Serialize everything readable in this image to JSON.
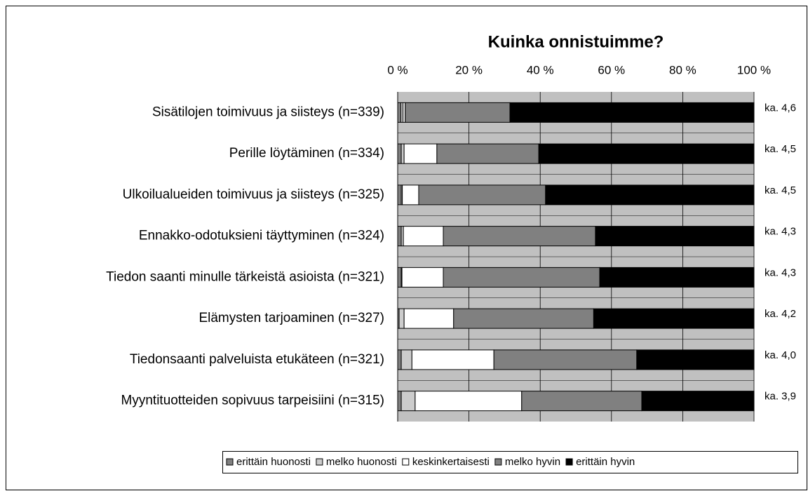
{
  "chart_data": {
    "type": "stacked_barh",
    "title": "Kuinka onnistuimme?",
    "categories": [
      "Sisätilojen toimivuus ja siisteys (n=339)",
      "Perille löytäminen (n=334)",
      "Ulkoilualueiden toimivuus ja siisteys (n=325)",
      "Ennakko-odotuksieni täyttyminen (n=324)",
      "Tiedon saanti minulle tärkeistä asioista (n=321)",
      "Elämysten tarjoaminen (n=327)",
      "Tiedonsaanti palveluista etukäteen (n=321)",
      "Myyntituotteiden sopivuus tarpeisiini (n=315)"
    ],
    "series": [
      {
        "name": "erittäin huonosti",
        "color": "#808080",
        "values": [
          0.9,
          1,
          1,
          1,
          1,
          0.4,
          1,
          1
        ]
      },
      {
        "name": "melko huonosti",
        "color": "#cccccc",
        "values": [
          0.6,
          0.8,
          0.3,
          0.6,
          0.2,
          1.4,
          3,
          3.9
        ]
      },
      {
        "name": "keskinkertaisesti",
        "color": "#ffffff",
        "values": [
          0.6,
          9.2,
          4.6,
          11.2,
          11.6,
          13.9,
          23,
          29.9
        ]
      },
      {
        "name": "melko hyvin",
        "color": "#808080",
        "values": [
          29.4,
          28.6,
          35.6,
          42.7,
          43.9,
          39.3,
          40.1,
          33.7
        ]
      },
      {
        "name": "erittäin hyvin",
        "color": "#000000",
        "values": [
          68.5,
          60.4,
          58.5,
          44.5,
          43.3,
          45,
          32.9,
          31.5
        ]
      }
    ],
    "annotations": [
      "ka. 4,6",
      "ka. 4,5",
      "ka. 4,5",
      "ka. 4,3",
      "ka. 4,3",
      "ka. 4,2",
      "ka. 4,0",
      "ka. 3,9"
    ],
    "xlim": [
      0,
      100
    ],
    "xticks": [
      {
        "value": 0,
        "label": "0 %"
      },
      {
        "value": 20,
        "label": "20 %"
      },
      {
        "value": 40,
        "label": "40 %"
      },
      {
        "value": 60,
        "label": "60 %"
      },
      {
        "value": 80,
        "label": "80 %"
      },
      {
        "value": 100,
        "label": "100 %"
      }
    ],
    "grid": true,
    "legend": "bottom"
  }
}
